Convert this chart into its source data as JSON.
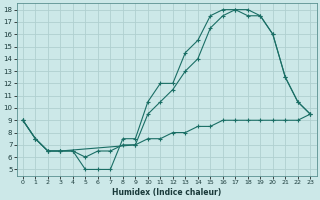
{
  "xlabel": "Humidex (Indice chaleur)",
  "bg_color": "#cce8e8",
  "grid_color": "#b0d0d0",
  "line_color": "#1a6e65",
  "xlim": [
    -0.5,
    23.5
  ],
  "ylim": [
    4.5,
    18.5
  ],
  "yticks": [
    5,
    6,
    7,
    8,
    9,
    10,
    11,
    12,
    13,
    14,
    15,
    16,
    17,
    18
  ],
  "xticks": [
    0,
    1,
    2,
    3,
    4,
    5,
    6,
    7,
    8,
    9,
    10,
    11,
    12,
    13,
    14,
    15,
    16,
    17,
    18,
    19,
    20,
    21,
    22,
    23
  ],
  "line1_x": [
    0,
    1,
    2,
    3,
    4,
    5,
    6,
    7,
    8,
    9,
    10,
    11,
    12,
    13,
    14,
    15,
    16,
    17,
    18,
    19,
    20,
    21,
    22,
    23
  ],
  "line1_y": [
    9.0,
    7.5,
    6.5,
    6.5,
    6.5,
    5.0,
    5.0,
    5.0,
    7.5,
    7.5,
    10.5,
    12.0,
    12.0,
    14.5,
    15.5,
    17.5,
    18.0,
    18.0,
    17.5,
    17.5,
    16.0,
    12.5,
    10.5,
    9.5
  ],
  "line2_x": [
    0,
    1,
    2,
    3,
    9,
    10,
    11,
    12,
    13,
    14,
    15,
    16,
    17,
    18,
    19,
    20,
    21,
    22,
    23
  ],
  "line2_y": [
    9.0,
    7.5,
    6.5,
    6.5,
    7.0,
    9.5,
    10.5,
    11.5,
    13.0,
    14.0,
    16.5,
    17.5,
    18.0,
    18.0,
    17.5,
    16.0,
    12.5,
    10.5,
    9.5
  ],
  "line3_x": [
    0,
    1,
    2,
    3,
    4,
    5,
    6,
    7,
    8,
    9,
    10,
    11,
    12,
    13,
    14,
    15,
    16,
    17,
    18,
    19,
    20,
    21,
    22,
    23
  ],
  "line3_y": [
    9.0,
    7.5,
    6.5,
    6.5,
    6.5,
    6.0,
    6.5,
    6.5,
    7.0,
    7.0,
    7.5,
    7.5,
    8.0,
    8.0,
    8.5,
    8.5,
    9.0,
    9.0,
    9.0,
    9.0,
    9.0,
    9.0,
    9.0,
    9.5
  ]
}
